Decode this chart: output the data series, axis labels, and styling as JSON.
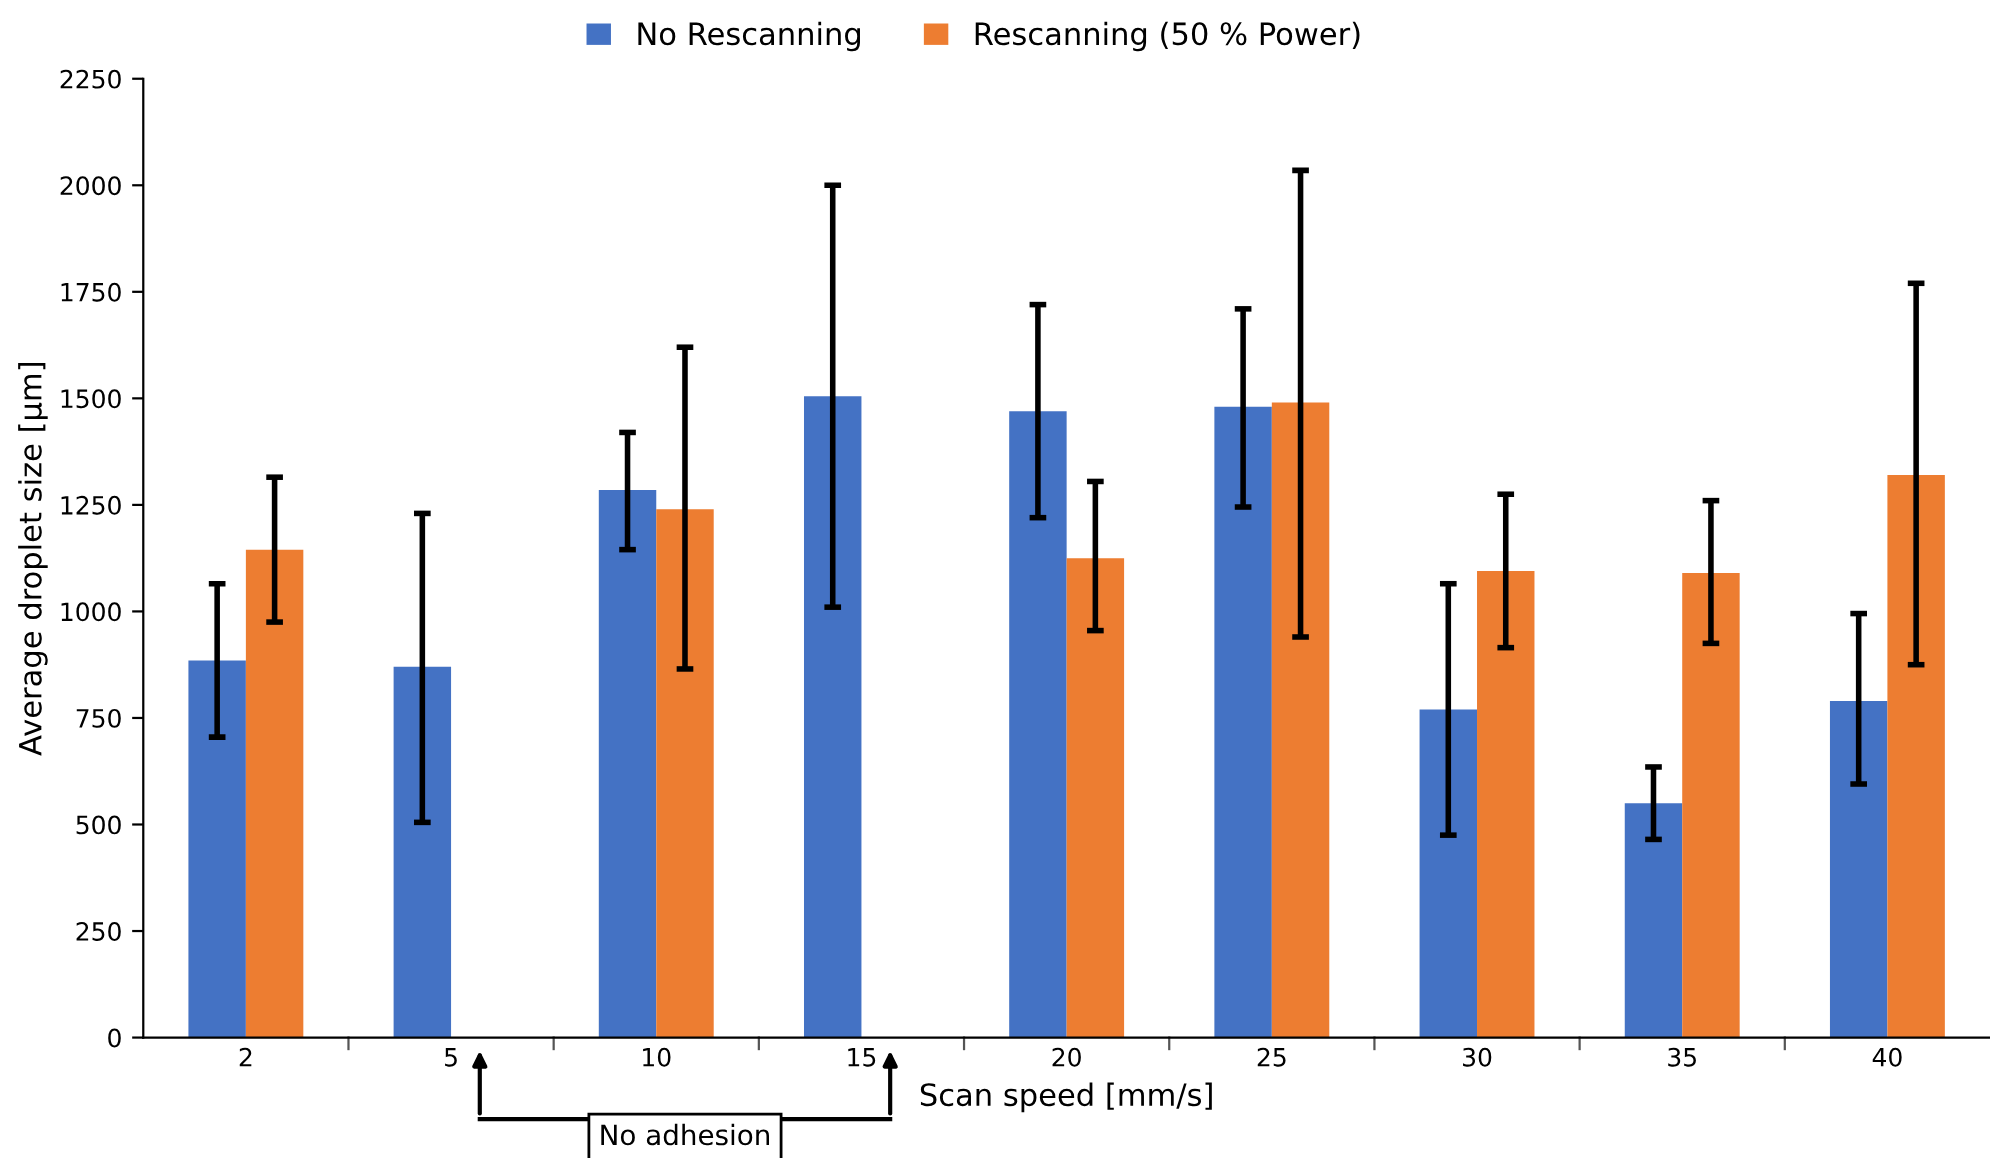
{
  "chart_data": {
    "type": "bar",
    "xlabel": "Scan speed [mm/s]",
    "ylabel": "Average droplet size [µm]",
    "categories": [
      "2",
      "5",
      "10",
      "15",
      "20",
      "25",
      "30",
      "35",
      "40"
    ],
    "series": [
      {
        "name": "No Rescanning",
        "color": "#4472c4",
        "values": [
          885,
          870,
          1285,
          1505,
          1470,
          1480,
          770,
          550,
          790
        ],
        "errors": [
          [
            705,
            1065
          ],
          [
            505,
            1230
          ],
          [
            1145,
            1420
          ],
          [
            1010,
            2000
          ],
          [
            1220,
            1720
          ],
          [
            1245,
            1710
          ],
          [
            475,
            1065
          ],
          [
            465,
            635
          ],
          [
            595,
            995
          ]
        ]
      },
      {
        "name": "Rescanning (50 % Power)",
        "color": "#ed7d31",
        "values": [
          1145,
          0,
          1240,
          0,
          1125,
          1490,
          1095,
          1090,
          1320
        ],
        "errors": [
          [
            975,
            1315
          ],
          null,
          [
            865,
            1620
          ],
          null,
          [
            955,
            1305
          ],
          [
            940,
            2035
          ],
          [
            915,
            1275
          ],
          [
            925,
            1260
          ],
          [
            875,
            1770
          ]
        ]
      }
    ],
    "ylim": [
      0,
      2250
    ],
    "yticks": [
      0,
      250,
      500,
      750,
      1000,
      1250,
      1500,
      1750,
      2000,
      2250
    ],
    "annotations": [
      "No adhesion"
    ],
    "legend": "top",
    "grid": false
  }
}
